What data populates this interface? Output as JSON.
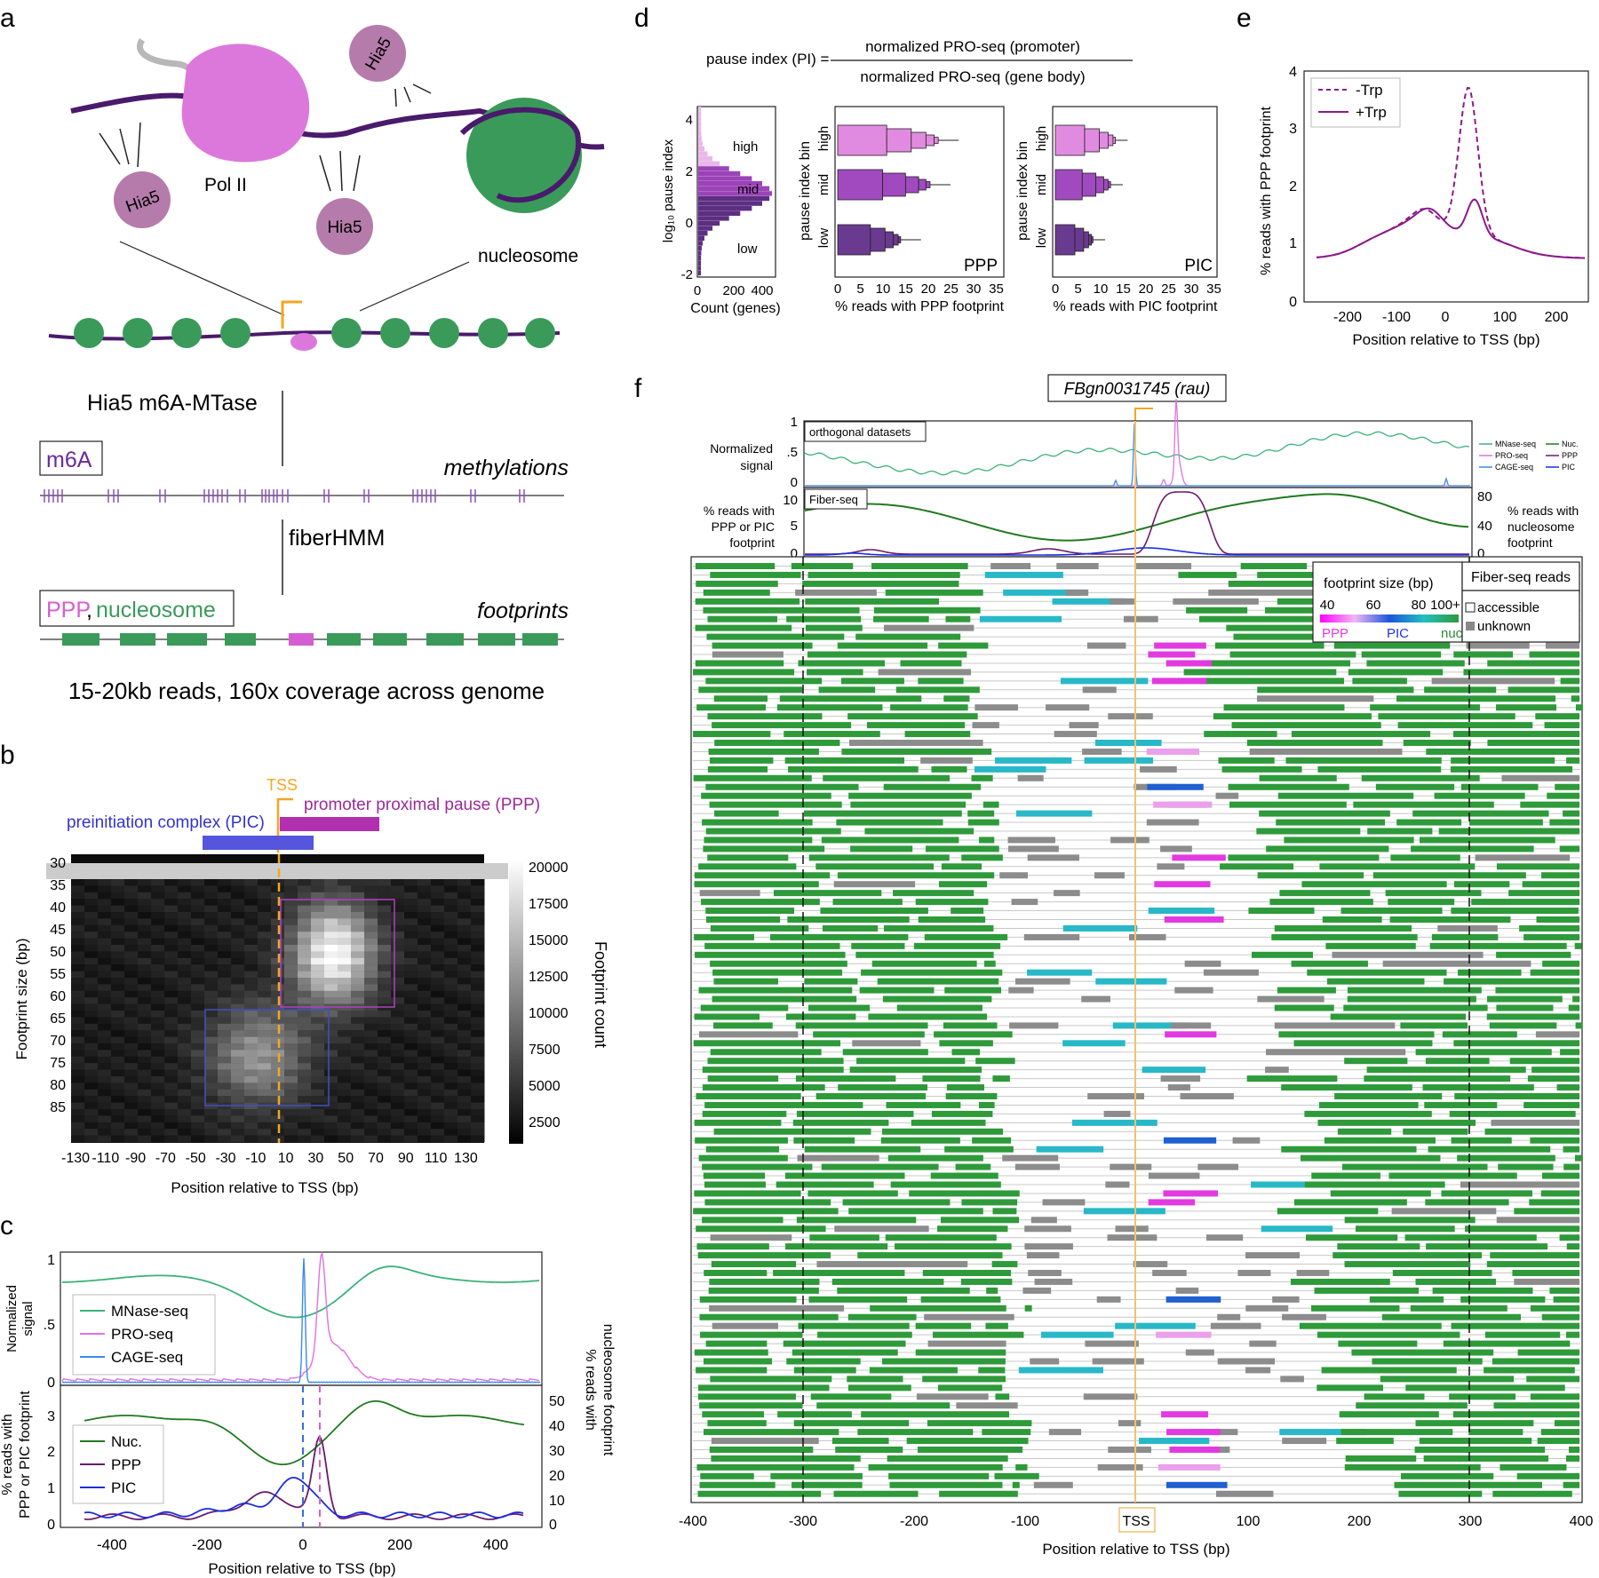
{
  "panels": {
    "a": {
      "letter": "a",
      "enzyme_labels": [
        "Hia5",
        "Hia5",
        "Hia5"
      ],
      "hia5_top": "Hia5",
      "polii": "Pol II",
      "nucleosome": "nucleosome",
      "step1": "Hia5 m6A-MTase",
      "m6a": "m6A",
      "methylations": "methylations",
      "step2": "fiberHMM",
      "ppp": "PPP",
      "comma": ",",
      "nucleosome_legend": "nucleosome",
      "footprints": "footprints",
      "caption": "15-20kb reads, 160x coverage across genome"
    },
    "b": {
      "letter": "b",
      "tss": "TSS",
      "ppp_label": "promoter proximal pause (PPP)",
      "pic_label": "preinitiation complex (PIC)",
      "y_ticks": [
        "30",
        "35",
        "40",
        "45",
        "50",
        "55",
        "60",
        "65",
        "70",
        "75",
        "80",
        "85"
      ],
      "x_ticks": [
        "-130",
        "-110",
        "-90",
        "-70",
        "-50",
        "-30",
        "-10",
        "10",
        "30",
        "50",
        "70",
        "90",
        "110",
        "130"
      ],
      "ylabel": "Footprint size (bp)",
      "xlabel": "Position relative to TSS (bp)",
      "cbar_ticks": [
        "20000",
        "17500",
        "15000",
        "12500",
        "10000",
        "7500",
        "5000",
        "2500"
      ],
      "cbar_label": "Footprint count"
    },
    "c": {
      "letter": "c",
      "top_ylabel_1": "Normalized",
      "top_ylabel_2": "signal",
      "top_yticks": [
        "1",
        ".5",
        "0"
      ],
      "legend_top": [
        "MNase-seq",
        "PRO-seq",
        "CAGE-seq"
      ],
      "legend_bottom": [
        "Nuc.",
        "PPP",
        "PIC"
      ],
      "bot_yticks_left": [
        "3",
        "2",
        "1",
        "0"
      ],
      "bot_yticks_right": [
        "50",
        "40",
        "30",
        "20",
        "10",
        "0"
      ],
      "bot_ylabel_left_1": "% reads with",
      "bot_ylabel_left_2": "PPP or PIC footprint",
      "bot_ylabel_right_1": "% reads with",
      "bot_ylabel_right_2": "nucleosome footprint",
      "x_ticks": [
        "-400",
        "-200",
        "0",
        "200",
        "400"
      ],
      "xlabel": "Position relative to TSS (bp)"
    },
    "d": {
      "letter": "d",
      "formula_lhs": "pause index (PI) =",
      "formula_num": "normalized PRO-seq (promoter)",
      "formula_den": "normalized PRO-seq (gene body)",
      "hist_ylabel": "log₁₀ pause index",
      "hist_yticks": [
        "4",
        "2",
        "0",
        "-2"
      ],
      "hist_xticks": [
        "0",
        "200",
        "400"
      ],
      "hist_xlabel": "Count (genes)",
      "bins": [
        "high",
        "mid",
        "low"
      ],
      "bin_ylabel": "pause index bin",
      "box_xticks": [
        "0",
        "5",
        "10",
        "15",
        "20",
        "25",
        "30",
        "35"
      ],
      "ppp_tag": "PPP",
      "pic_tag": "PIC",
      "ppp_xlabel": "% reads with PPP footprint",
      "pic_xlabel": "% reads with PIC footprint"
    },
    "e": {
      "letter": "e",
      "legend": [
        "-Trp",
        "+Trp"
      ],
      "yticks": [
        "4",
        "3",
        "2",
        "1",
        "0"
      ],
      "xticks": [
        "-200",
        "-100",
        "0",
        "100",
        "200"
      ],
      "ylabel": "% reads with PPP footprint",
      "xlabel": "Position relative to TSS (bp)"
    },
    "f": {
      "letter": "f",
      "gene": "FBgn0031745 (rau)",
      "top_tag": "orthogonal datasets",
      "top_ylabel_1": "Normalized",
      "top_ylabel_2": "signal",
      "top_yticks": [
        "1",
        ".5",
        "0"
      ],
      "mini_legend": [
        "MNase-seq",
        "PRO-seq",
        "CAGE-seq",
        "Nuc.",
        "PPP",
        "PIC"
      ],
      "fs_tag": "Fiber-seq",
      "fs_left_ticks": [
        "10",
        "5",
        "0"
      ],
      "fs_right_ticks": [
        "80",
        "40",
        "0"
      ],
      "fs_ylabel_left": [
        "% reads with",
        "PPP or PIC",
        "footprint"
      ],
      "fs_ylabel_right": [
        "% reads with",
        "nucleosome",
        "footprint"
      ],
      "size_legend_title": "footprint size (bp)",
      "size_ticks": [
        "40",
        "60",
        "80",
        "100+"
      ],
      "size_classes": [
        "PPP",
        "PIC",
        "nuc."
      ],
      "reads_legend_title": "Fiber-seq reads",
      "accessible": "accessible",
      "unknown": "unknown",
      "x_ticks": [
        "-400",
        "-300",
        "-200",
        "-100",
        "TSS",
        "100",
        "200",
        "300",
        "400"
      ],
      "xlabel": "Position relative to TSS (bp)"
    }
  },
  "colors": {
    "ppp": "#d45ed2",
    "nucleosome": "#3a9a5a",
    "pic": "#2233dd",
    "tss": "#f5a623",
    "purple": "#6b1a6b",
    "polii": "#dc78dc",
    "hia5": "#b57bab",
    "nuc_dark": "#2e7d32",
    "nuc_green": "#3aa14a"
  }
}
